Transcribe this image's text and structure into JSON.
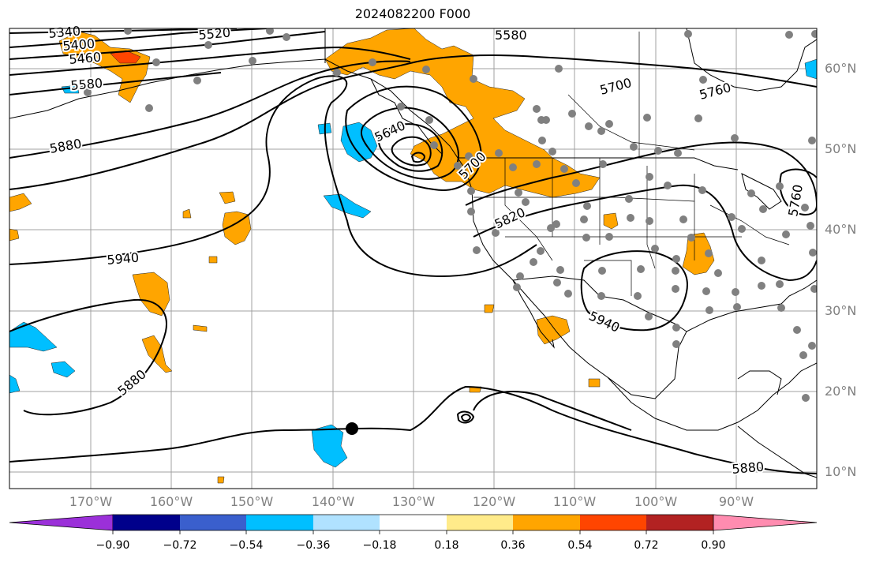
{
  "title": "2024082200 F000",
  "map": {
    "projection": "PlateCarree",
    "lon_range": [
      -180,
      -80
    ],
    "lat_range": [
      8,
      65
    ],
    "lat_labels": [
      "60°N",
      "50°N",
      "40°N",
      "30°N",
      "20°N",
      "10°N"
    ],
    "lon_labels": [
      "170°W",
      "160°W",
      "150°W",
      "140°W",
      "130°W",
      "120°W",
      "110°W",
      "100°W",
      "90°W"
    ],
    "contour_labels": [
      "5340",
      "5400",
      "5460",
      "5580",
      "5880",
      "5940",
      "5880",
      "5520",
      "5580",
      "5640",
      "5700",
      "5700",
      "5760",
      "5820",
      "5940",
      "5880",
      "5760"
    ],
    "contour_color": "#000000",
    "station_marker_color": "#808080"
  },
  "colorbar": {
    "tick_labels": [
      "−0.90",
      "−0.72",
      "−0.54",
      "−0.36",
      "−0.18",
      "0.18",
      "0.36",
      "0.54",
      "0.72",
      "0.90"
    ],
    "colors": [
      "#9b30d9",
      "#00008b",
      "#3a5fcd",
      "#00bfff",
      "#b0e2ff",
      "#ffffff",
      "#ffeb8a",
      "#ffa500",
      "#ff4500",
      "#b22222",
      "#ff8cb0"
    ]
  }
}
